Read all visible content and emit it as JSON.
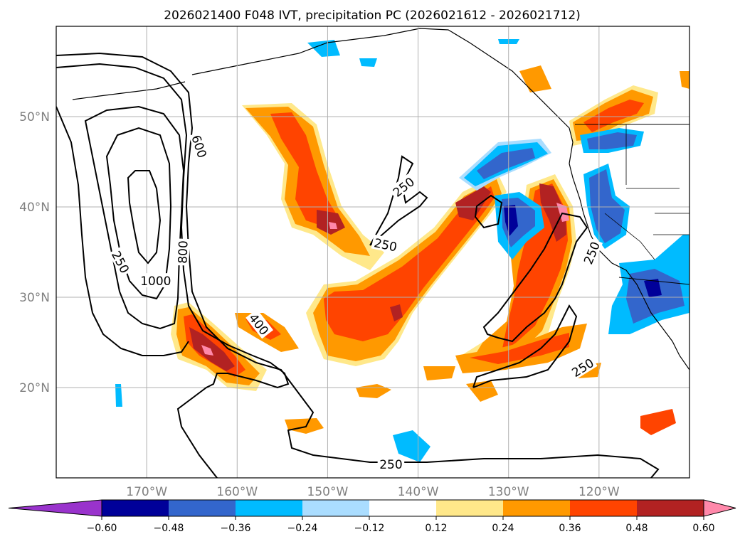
{
  "title": "2026021400 F048 IVT, precipitation PC (2026021612 - 2026021712)",
  "map": {
    "lon_range": [
      -180,
      -110
    ],
    "lat_range": [
      10,
      60
    ],
    "lon_ticks": [
      {
        "lon": -170,
        "label": "170°W"
      },
      {
        "lon": -160,
        "label": "160°W"
      },
      {
        "lon": -150,
        "label": "150°W"
      },
      {
        "lon": -140,
        "label": "140°W"
      },
      {
        "lon": -130,
        "label": "130°W"
      },
      {
        "lon": -120,
        "label": "120°W"
      }
    ],
    "lat_ticks": [
      {
        "lat": 20,
        "label": "20°N"
      },
      {
        "lat": 30,
        "label": "30°N"
      },
      {
        "lat": 40,
        "label": "40°N"
      },
      {
        "lat": 50,
        "label": "50°N"
      }
    ],
    "grid": true
  },
  "contours": {
    "labels": [
      {
        "text": "250",
        "lon": -172.9,
        "lat": 33.9,
        "rot": 62
      },
      {
        "text": "800",
        "lon": -166.0,
        "lat": 35.0,
        "rot": -88
      },
      {
        "text": "1000",
        "lon": -169.0,
        "lat": 31.8,
        "rot": 0
      },
      {
        "text": "600",
        "lon": -164.2,
        "lat": 46.7,
        "rot": 72
      },
      {
        "text": "400",
        "lon": -157.6,
        "lat": 27.0,
        "rot": 52
      },
      {
        "text": "250",
        "lon": -141.6,
        "lat": 42.2,
        "rot": -38
      },
      {
        "text": "250",
        "lon": -143.6,
        "lat": 35.8,
        "rot": 12
      },
      {
        "text": "250",
        "lon": -120.8,
        "lat": 34.9,
        "rot": -68
      },
      {
        "text": "250",
        "lon": -121.8,
        "lat": 22.2,
        "rot": -32
      },
      {
        "text": "250",
        "lon": -143.0,
        "lat": 11.5,
        "rot": 0
      }
    ]
  },
  "colorbar": {
    "levels": [
      "−0.60",
      "−0.48",
      "−0.36",
      "−0.24",
      "−0.12",
      "0.12",
      "0.24",
      "0.36",
      "0.48",
      "0.60"
    ],
    "colors": [
      "#9933cc",
      "#000099",
      "#3366cc",
      "#00bbff",
      "#aaddff",
      "#ffffff",
      "#ffe88a",
      "#ff9900",
      "#ff4400",
      "#b22222",
      "#ff88aa"
    ]
  }
}
